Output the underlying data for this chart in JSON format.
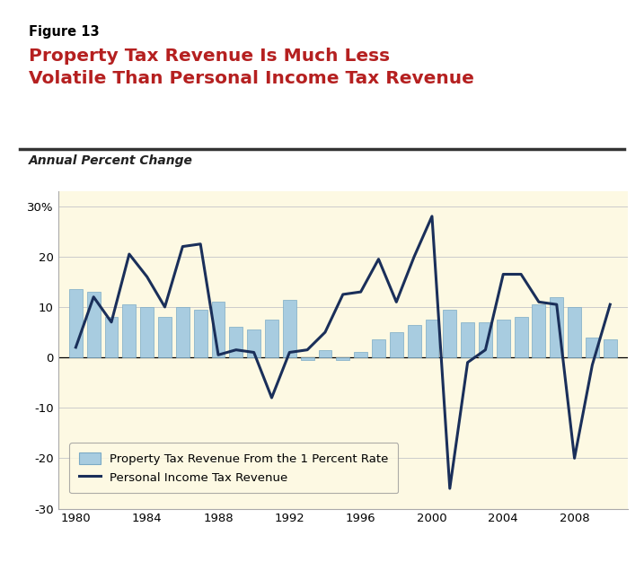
{
  "years": [
    1980,
    1981,
    1982,
    1983,
    1984,
    1985,
    1986,
    1987,
    1988,
    1989,
    1990,
    1991,
    1992,
    1993,
    1994,
    1995,
    1996,
    1997,
    1998,
    1999,
    2000,
    2001,
    2002,
    2003,
    2004,
    2005,
    2006,
    2007,
    2008,
    2009,
    2010
  ],
  "property_tax": [
    13.5,
    13.0,
    8.0,
    10.5,
    10.0,
    8.0,
    10.0,
    9.5,
    11.0,
    6.0,
    5.5,
    7.5,
    11.5,
    -0.5,
    1.5,
    -0.5,
    1.0,
    3.5,
    5.0,
    6.5,
    7.5,
    9.5,
    7.0,
    7.0,
    7.5,
    8.0,
    10.5,
    12.0,
    10.0,
    4.0,
    3.5
  ],
  "income_tax": [
    2.0,
    12.0,
    7.0,
    20.5,
    16.0,
    10.0,
    22.0,
    22.5,
    0.5,
    1.5,
    1.0,
    -8.0,
    1.0,
    1.5,
    5.0,
    12.5,
    13.0,
    19.5,
    11.0,
    20.0,
    28.0,
    -26.0,
    -1.0,
    1.5,
    16.5,
    16.5,
    11.0,
    10.5,
    -20.0,
    -1.5,
    10.5
  ],
  "bar_color": "#a8cce0",
  "bar_edge_color": "#7baac5",
  "line_color": "#1a2f5a",
  "bg_color": "#fdf9e3",
  "header_bg": "#ffffff",
  "figure_label": "Figure 13",
  "title_line1": "Property Tax Revenue Is Much Less",
  "title_line2": "Volatile Than Personal Income Tax Revenue",
  "subtitle": "Annual Percent Change",
  "ylim": [
    -30,
    33
  ],
  "yticks": [
    -30,
    -20,
    -10,
    0,
    10,
    20,
    30
  ],
  "xtick_labels": [
    "1980",
    "1984",
    "1988",
    "1992",
    "1996",
    "2000",
    "2004",
    "2008"
  ],
  "xtick_positions": [
    1980,
    1984,
    1988,
    1992,
    1996,
    2000,
    2004,
    2008
  ],
  "legend_label_bar": "Property Tax Revenue From the 1 Percent Rate",
  "legend_label_line": "Personal Income Tax Revenue",
  "grid_color": "#cccccc",
  "title_color": "#b52020",
  "figure_label_color": "#000000",
  "separator_color": "#333333"
}
